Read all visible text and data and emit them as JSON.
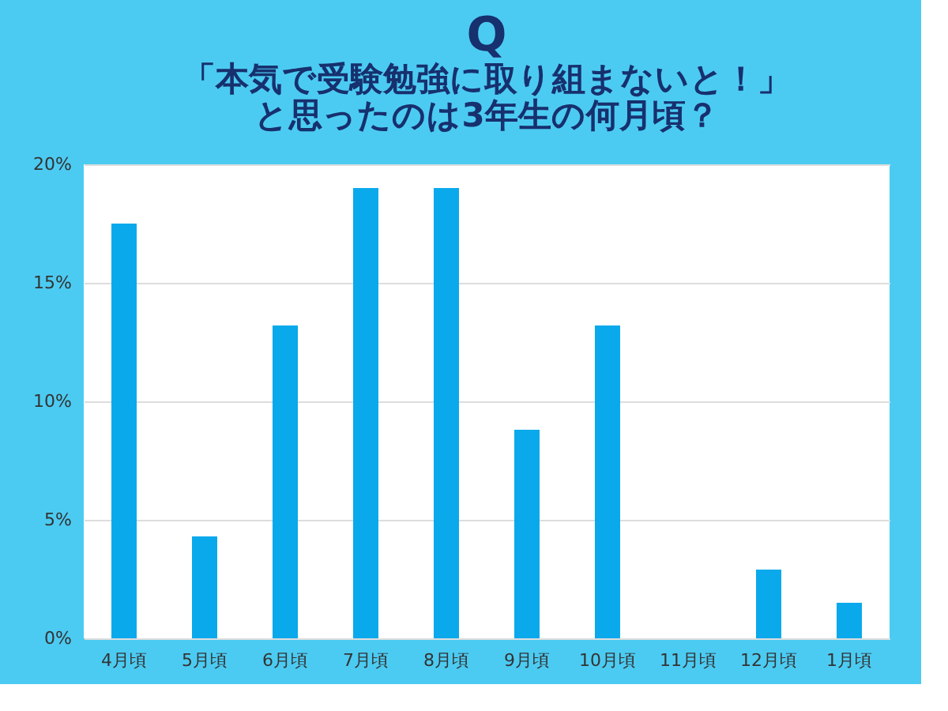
{
  "chart_data": {
    "type": "bar",
    "title": "Q",
    "subtitle": "「本気で受験勉強に取り組まないと！」と思ったのは3年生の何月頃？",
    "categories": [
      "4月頃",
      "5月頃",
      "6月頃",
      "7月頃",
      "8月頃",
      "9月頃",
      "10月頃",
      "11月頃",
      "12月頃",
      "1月頃"
    ],
    "values": [
      17.5,
      4.3,
      13.2,
      19.0,
      19.0,
      8.8,
      13.2,
      0,
      2.9,
      1.5
    ],
    "color": "#0aa9ec",
    "ylim": [
      0,
      20
    ],
    "yticks": [
      {
        "value": 0,
        "label": "0%"
      },
      {
        "value": 5,
        "label": "5%"
      },
      {
        "value": 10,
        "label": "10%"
      },
      {
        "value": 15,
        "label": "15%"
      },
      {
        "value": 20,
        "label": "20%"
      }
    ],
    "grid": "y"
  }
}
